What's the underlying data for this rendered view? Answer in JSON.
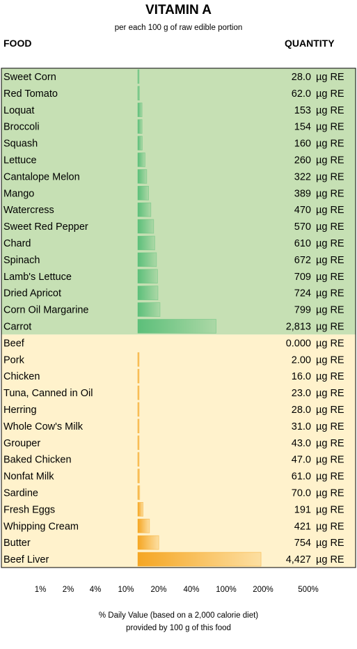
{
  "title": "VITAMIN A",
  "subtitle": "per each 100 g of raw edible portion",
  "columns": {
    "food": "FOOD",
    "quantity": "QUANTITY"
  },
  "footer": {
    "line1": "% Daily Value (based on a 2,000 calorie diet)",
    "line2": "provided by 100 g of this food"
  },
  "colors": {
    "plant_bg": "#c6e0b4",
    "animal_bg": "#fff2cc",
    "plant_bar": "#5cbf7a",
    "animal_bar": "#f5a623"
  },
  "chart_data": {
    "type": "bar",
    "orientation": "horizontal",
    "unit": "µg RE",
    "x_axis_scale": "log",
    "x_axis_ticks": [
      "1%",
      "2%",
      "4%",
      "10%",
      "20%",
      "40%",
      "100%",
      "200%",
      "500%"
    ],
    "x_axis_label": "% Daily Value (based on a 2,000 calorie diet) provided by 100 g of this food",
    "groups": [
      {
        "color": "#5cbf7a",
        "background": "#c6e0b4",
        "items": [
          {
            "food": "Sweet Corn",
            "label": "28.0",
            "value": 28.0
          },
          {
            "food": "Red Tomato",
            "label": "62.0",
            "value": 62.0
          },
          {
            "food": "Loquat",
            "label": "153",
            "value": 153
          },
          {
            "food": "Broccoli",
            "label": "154",
            "value": 154
          },
          {
            "food": "Squash",
            "label": "160",
            "value": 160
          },
          {
            "food": "Lettuce",
            "label": "260",
            "value": 260
          },
          {
            "food": "Cantalope Melon",
            "label": "322",
            "value": 322
          },
          {
            "food": "Mango",
            "label": "389",
            "value": 389
          },
          {
            "food": "Watercress",
            "label": "470",
            "value": 470
          },
          {
            "food": "Sweet Red Pepper",
            "label": "570",
            "value": 570
          },
          {
            "food": "Chard",
            "label": "610",
            "value": 610
          },
          {
            "food": "Spinach",
            "label": "672",
            "value": 672
          },
          {
            "food": "Lamb's Lettuce",
            "label": "709",
            "value": 709
          },
          {
            "food": "Dried Apricot",
            "label": "724",
            "value": 724
          },
          {
            "food": "Corn Oil Margarine",
            "label": "799",
            "value": 799
          },
          {
            "food": "Carrot",
            "label": "2,813",
            "value": 2813
          }
        ]
      },
      {
        "color": "#f5a623",
        "background": "#fff2cc",
        "items": [
          {
            "food": "Beef",
            "label": "0.000",
            "value": 0
          },
          {
            "food": "Pork",
            "label": "2.00",
            "value": 2
          },
          {
            "food": "Chicken",
            "label": "16.0",
            "value": 16
          },
          {
            "food": "Tuna, Canned in Oil",
            "label": "23.0",
            "value": 23
          },
          {
            "food": "Herring",
            "label": "28.0",
            "value": 28
          },
          {
            "food": "Whole Cow's Milk",
            "label": "31.0",
            "value": 31
          },
          {
            "food": "Grouper",
            "label": "43.0",
            "value": 43
          },
          {
            "food": "Baked Chicken",
            "label": "47.0",
            "value": 47
          },
          {
            "food": "Nonfat Milk",
            "label": "61.0",
            "value": 61
          },
          {
            "food": "Sardine",
            "label": "70.0",
            "value": 70
          },
          {
            "food": "Fresh Eggs",
            "label": "191",
            "value": 191
          },
          {
            "food": "Whipping Cream",
            "label": "421",
            "value": 421
          },
          {
            "food": "Butter",
            "label": "754",
            "value": 754
          },
          {
            "food": "Beef Liver",
            "label": "4,427",
            "value": 4427
          }
        ]
      }
    ]
  }
}
